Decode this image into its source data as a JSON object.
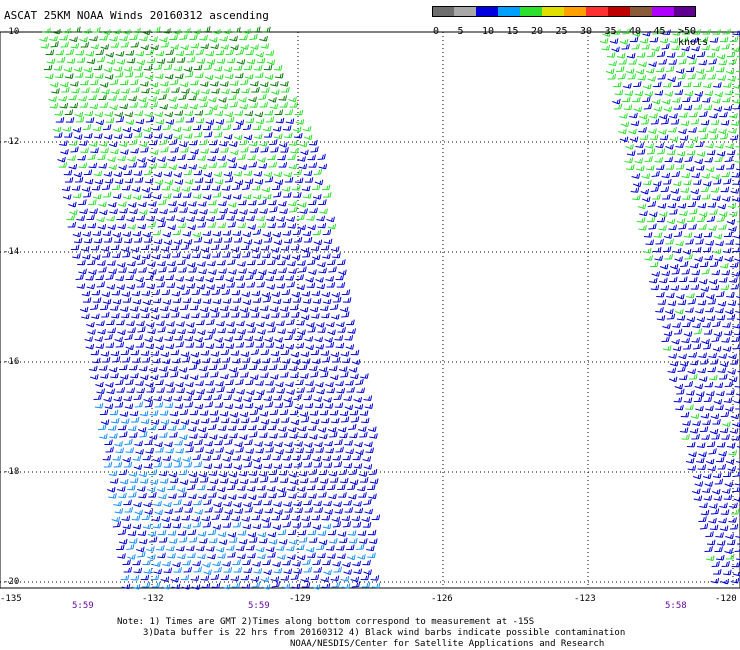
{
  "title": "ASCAT 25KM NOAA Winds 20160312 ascending",
  "colorbar": {
    "ticks": [
      "0",
      "5",
      "10",
      "15",
      "20",
      "25",
      "30",
      "35",
      "40",
      "45",
      ">50 knots"
    ],
    "colors": [
      "#6e6e6e",
      "#a8a8a8",
      "#0000e0",
      "#00a0ff",
      "#2ee02e",
      "#e0e000",
      "#ffa000",
      "#ff3030",
      "#c00000",
      "#8a5a3a",
      "#b000ff",
      "#600090"
    ]
  },
  "latitude_labels": [
    "-10",
    "-12",
    "-14",
    "-16",
    "-18",
    "-20"
  ],
  "longitude_labels": [
    "-135",
    "-132",
    "-129",
    "-126",
    "-123",
    "-120"
  ],
  "time_labels": [
    "5:59",
    "5:59",
    "5:58"
  ],
  "notes": {
    "line1": "Note: 1) Times are GMT 2)Times along bottom correspond to measurement at -15S",
    "line2": "3)Data buffer is 22 hrs from 20160312 4) Black wind barbs indicate possible contamination",
    "line3": "NOAA/NESDIS/Center for Satellite Applications and Research"
  }
}
